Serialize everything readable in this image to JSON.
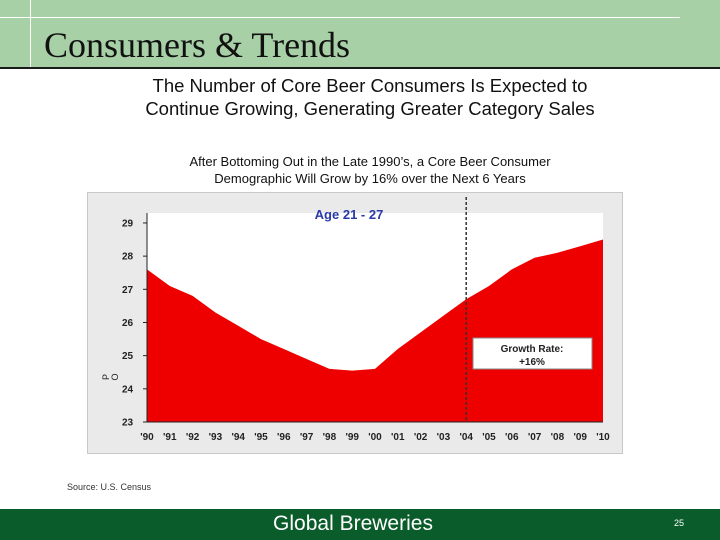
{
  "slide": {
    "title": "Consumers & Trends",
    "headline_line1": "The Number of Core Beer Consumers Is Expected to",
    "headline_line2": "Continue Growing, Generating Greater Category Sales",
    "subhead_line1": "After Bottoming Out in the Late 1990’s, a Core Beer Consumer",
    "subhead_line2": "Demographic Will Grow by 16% over the Next 6 Years",
    "source": "Source: U.S. Census",
    "footer": "Global Breweries",
    "page_number": "25"
  },
  "colors": {
    "header_band": "#a7d0a6",
    "footer_band": "#0a5c2a",
    "area_fill": "#ee0000",
    "series_title": "#2a3aa8",
    "chart_bg": "#eaeaea"
  },
  "chart_data": {
    "type": "area",
    "series_title": "Age 21 - 27",
    "ylabel": "P O",
    "x": [
      "'90",
      "'91",
      "'92",
      "'93",
      "'94",
      "'95",
      "'96",
      "'97",
      "'98",
      "'99",
      "'00",
      "'01",
      "'02",
      "'03",
      "'04",
      "'05",
      "'06",
      "'07",
      "'08",
      "'09",
      "'10"
    ],
    "values": [
      27.6,
      27.1,
      26.8,
      26.3,
      25.9,
      25.5,
      25.2,
      24.9,
      24.6,
      24.55,
      24.6,
      25.2,
      25.7,
      26.2,
      26.7,
      27.1,
      27.6,
      27.95,
      28.1,
      28.3,
      28.5
    ],
    "yticks": [
      23,
      24,
      25,
      26,
      27,
      28,
      29
    ],
    "ylim": [
      23,
      29.3
    ],
    "divider_after": "'04",
    "divider_style": "dashed",
    "annotation": {
      "line1": "Growth Rate:",
      "line2": "+16%"
    },
    "grid": false,
    "legend": "none"
  }
}
